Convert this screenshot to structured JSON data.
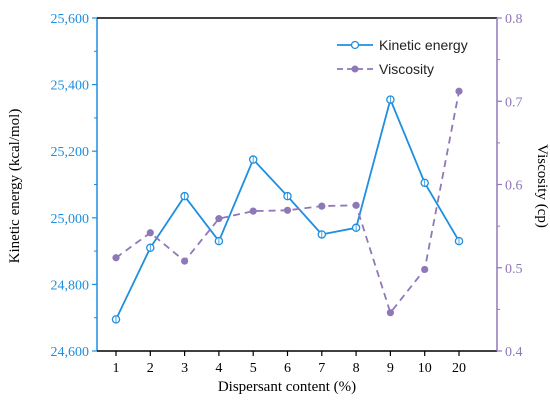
{
  "chart_data": {
    "type": "line",
    "categories": [
      "1",
      "2",
      "3",
      "4",
      "5",
      "6",
      "7",
      "8",
      "9",
      "10",
      "20"
    ],
    "xlabel": "Dispersant content (%)",
    "series": [
      {
        "name": "Kinetic energy",
        "axis": "left",
        "style": "solid",
        "marker": "open-circle",
        "color": "#1f8fdf",
        "values": [
          24695,
          24910,
          25065,
          24930,
          25175,
          25065,
          24950,
          24970,
          25355,
          25105,
          24930
        ]
      },
      {
        "name": "Viscosity",
        "axis": "right",
        "style": "dashed",
        "marker": "filled-circle",
        "color": "#8f78b8",
        "values": [
          0.512,
          0.542,
          0.508,
          0.559,
          0.568,
          0.569,
          0.574,
          0.575,
          0.446,
          0.498,
          0.712
        ]
      }
    ],
    "y_left": {
      "label": "Kinetic energy (kcal/mol)",
      "range": [
        24600,
        25600
      ],
      "ticks": [
        24600,
        24800,
        25000,
        25200,
        25400,
        25600
      ],
      "tick_labels": [
        "24,600",
        "24,800",
        "25,000",
        "25,200",
        "25,400",
        "25,600"
      ],
      "color": "#1f8fdf"
    },
    "y_right": {
      "label": "Viscosity (cp)",
      "range": [
        0.4,
        0.8
      ],
      "ticks": [
        0.4,
        0.5,
        0.6,
        0.7,
        0.8
      ],
      "tick_labels": [
        "0.4",
        "0.5",
        "0.6",
        "0.7",
        "0.8"
      ],
      "color": "#8f78b8"
    },
    "legend": {
      "position": "top-right",
      "entries": [
        "Kinetic energy",
        "Viscosity"
      ]
    },
    "grid": false
  }
}
